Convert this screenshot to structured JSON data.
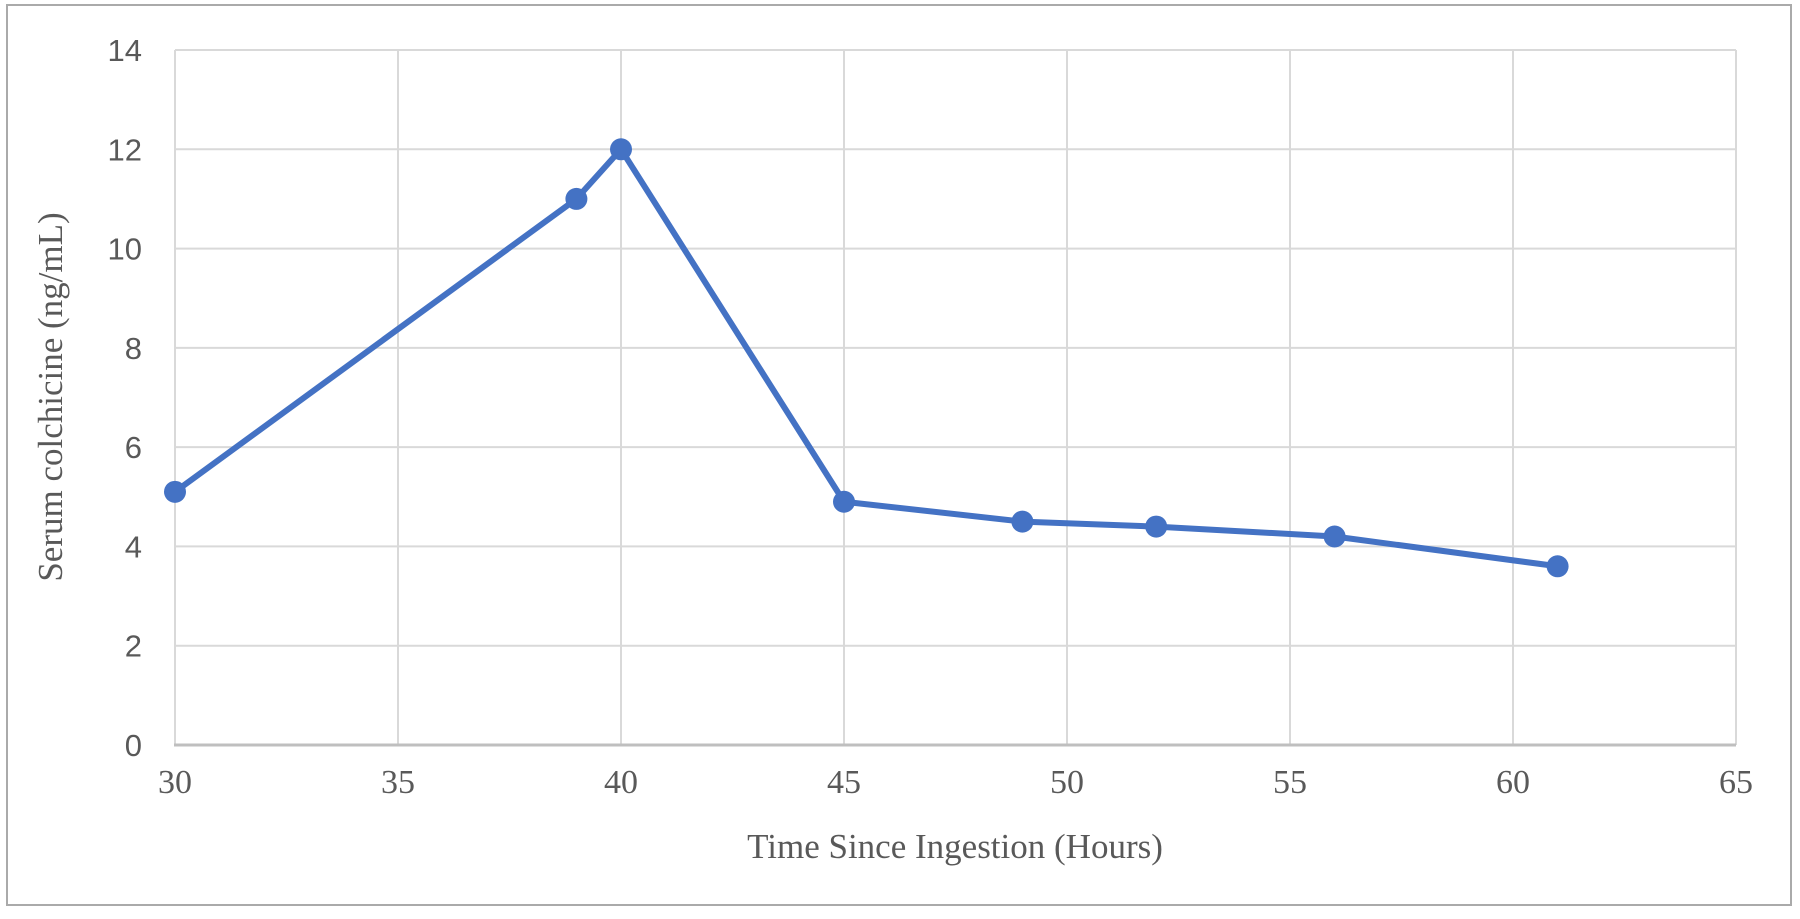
{
  "chart_data": {
    "type": "line",
    "title": "",
    "xlabel": "Time Since Ingestion (Hours)",
    "ylabel": "Serum colchicine (ng/mL)",
    "series": [
      {
        "name": "Serum colchicine",
        "x": [
          30,
          39,
          40,
          45,
          49,
          52,
          56,
          61
        ],
        "y": [
          5.1,
          11,
          12,
          4.9,
          4.5,
          4.4,
          4.2,
          3.6
        ]
      }
    ],
    "xlim": [
      30,
      65
    ],
    "ylim": [
      0,
      14
    ],
    "xticks": [
      30,
      35,
      40,
      45,
      50,
      55,
      60,
      65
    ],
    "yticks": [
      0,
      2,
      4,
      6,
      8,
      10,
      12,
      14
    ],
    "grid": "on",
    "legend": "none",
    "colors": {
      "line": "#4472C4",
      "marker": "#4472C4",
      "gridline": "#D9D9D9",
      "axis_line": "#BFBFBF",
      "tick_label": "#595959",
      "axis_title": "#595959",
      "figure_border": "#AAAAAA",
      "background": "#FFFFFF"
    }
  }
}
